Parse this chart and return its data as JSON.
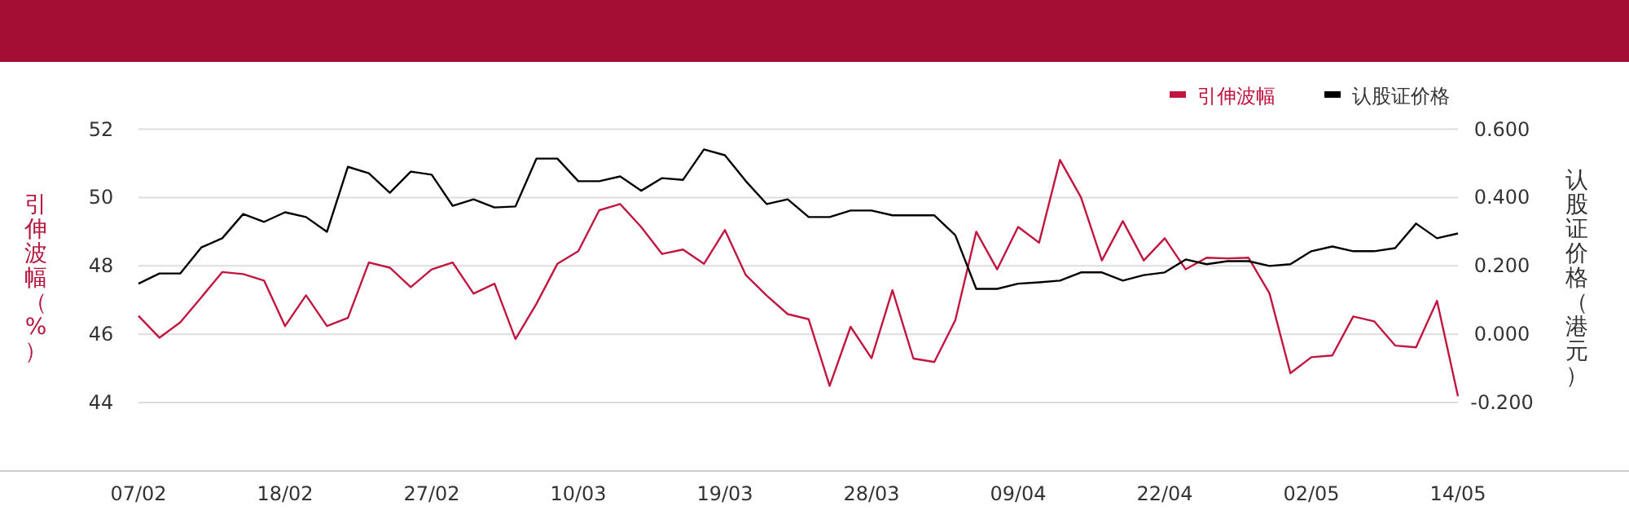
{
  "chart_data": {
    "type": "line",
    "ylabel": "引伸波幅（%）",
    "y2label": "认股证价格（港元）",
    "categories": [
      "07/02",
      null,
      null,
      null,
      null,
      null,
      null,
      "18/02",
      null,
      null,
      null,
      null,
      null,
      null,
      "27/02",
      null,
      null,
      null,
      null,
      null,
      null,
      "10/03",
      null,
      null,
      null,
      null,
      null,
      null,
      "19/03",
      null,
      null,
      null,
      null,
      null,
      null,
      "28/03",
      null,
      null,
      null,
      null,
      null,
      null,
      "09/04",
      null,
      null,
      null,
      null,
      null,
      null,
      "22/04",
      null,
      null,
      null,
      null,
      null,
      null,
      "02/05",
      null,
      null,
      null,
      null,
      null,
      null,
      "14/05"
    ],
    "series": [
      {
        "name": "引伸波幅",
        "color": "#c0163f",
        "values": [
          46.54,
          45.9,
          46.35,
          47.08,
          47.82,
          47.76,
          47.57,
          46.24,
          47.14,
          46.24,
          46.48,
          48.1,
          47.95,
          47.38,
          47.9,
          48.1,
          47.19,
          47.48,
          45.86,
          46.89,
          48.06,
          48.43,
          49.63,
          49.81,
          49.14,
          48.35,
          48.48,
          48.06,
          49.05,
          47.73,
          47.13,
          46.59,
          46.44,
          44.49,
          46.22,
          45.3,
          47.29,
          45.29,
          45.19,
          46.41,
          49.0,
          47.9,
          49.14,
          48.68,
          51.1,
          50.01,
          48.16,
          49.31,
          48.16,
          48.81,
          47.9,
          48.24,
          48.22,
          48.24,
          47.2,
          44.86,
          45.33,
          45.38,
          46.52,
          46.38,
          45.67,
          45.62,
          46.98,
          44.19
        ]
      },
      {
        "name": "认股证价格",
        "color": "#000000",
        "axis": "y2",
        "values": [
          0.148,
          0.178,
          0.178,
          0.254,
          0.281,
          0.352,
          0.329,
          0.357,
          0.343,
          0.3,
          0.49,
          0.471,
          0.414,
          0.476,
          0.467,
          0.376,
          0.395,
          0.371,
          0.374,
          0.514,
          0.514,
          0.448,
          0.448,
          0.462,
          0.42,
          0.457,
          0.452,
          0.541,
          0.524,
          0.448,
          0.381,
          0.395,
          0.343,
          0.343,
          0.362,
          0.362,
          0.348,
          0.348,
          0.348,
          0.29,
          0.133,
          0.133,
          0.148,
          0.152,
          0.157,
          0.181,
          0.181,
          0.157,
          0.173,
          0.181,
          0.219,
          0.205,
          0.214,
          0.214,
          0.2,
          0.205,
          0.243,
          0.257,
          0.243,
          0.243,
          0.252,
          0.324,
          0.281,
          0.295
        ]
      }
    ],
    "ylim": [
      42,
      52
    ],
    "yticks": [
      44,
      46,
      48,
      50,
      52
    ],
    "y2lim": [
      -0.4,
      0.6
    ],
    "y2ticks": [
      {
        "value": -0.2,
        "label": "-0.200"
      },
      {
        "value": 0,
        "label": "0.000"
      },
      {
        "value": 0.2,
        "label": "0.200"
      },
      {
        "value": 0.4,
        "label": "0.400"
      },
      {
        "value": 0.6,
        "label": "0.600"
      }
    ],
    "grid": "y",
    "legend": "top right"
  }
}
